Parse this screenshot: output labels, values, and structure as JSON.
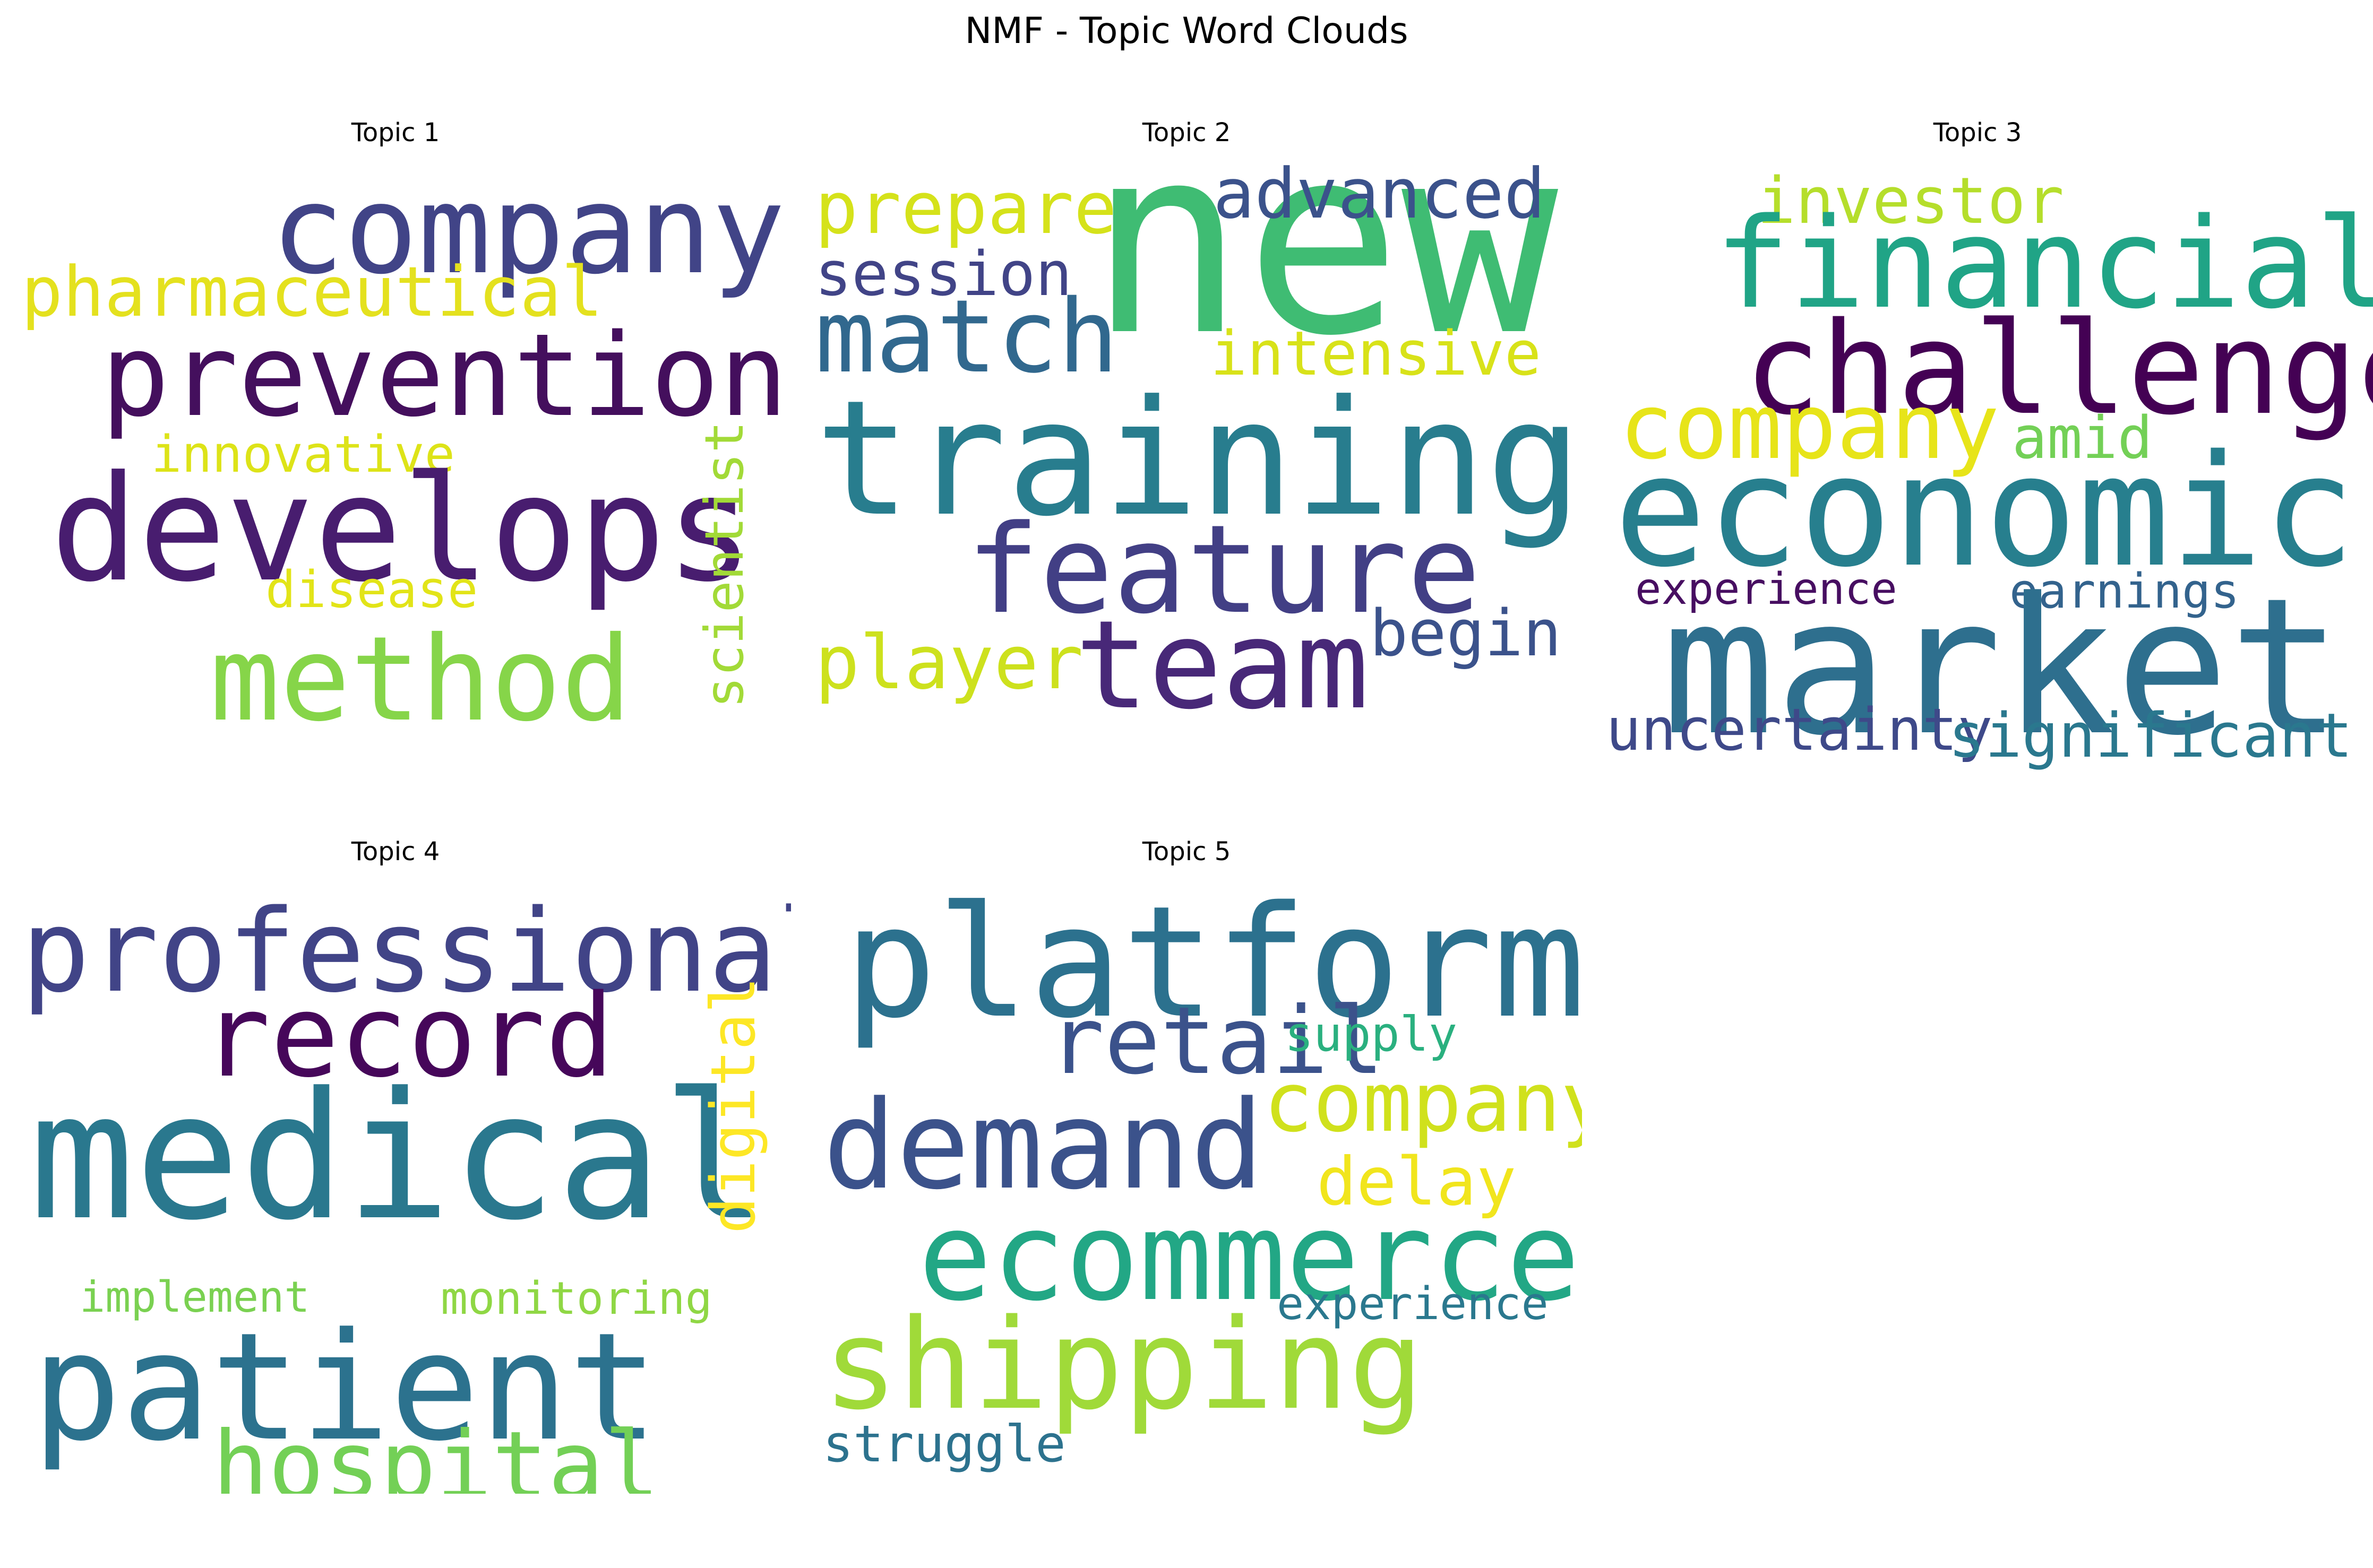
{
  "chart_data": {
    "type": "wordcloud",
    "title": "NMF - Topic Word Clouds",
    "panels": [
      {
        "title": "Topic 1",
        "words": [
          {
            "text": "company",
            "color": "#414487"
          },
          {
            "text": "pharmaceutical",
            "color": "#e4e11e"
          },
          {
            "text": "prevention",
            "color": "#440f5d"
          },
          {
            "text": "innovative",
            "color": "#dde318"
          },
          {
            "text": "develops",
            "color": "#481d6f"
          },
          {
            "text": "scientist",
            "color": "#a2da37"
          },
          {
            "text": "disease",
            "color": "#e2e418"
          },
          {
            "text": "method",
            "color": "#86d549"
          }
        ]
      },
      {
        "title": "Topic 2",
        "words": [
          {
            "text": "prepare",
            "color": "#d5e21a"
          },
          {
            "text": "new",
            "color": "#3fbc73"
          },
          {
            "text": "advanced",
            "color": "#3b528b"
          },
          {
            "text": "session",
            "color": "#414487"
          },
          {
            "text": "match",
            "color": "#31688e"
          },
          {
            "text": "intensive",
            "color": "#d8e219"
          },
          {
            "text": "training",
            "color": "#287d8e"
          },
          {
            "text": "feature",
            "color": "#423f85"
          },
          {
            "text": "player",
            "color": "#cde11d"
          },
          {
            "text": "team",
            "color": "#482878"
          },
          {
            "text": "begin",
            "color": "#3b528b"
          }
        ]
      },
      {
        "title": "Topic 3",
        "words": [
          {
            "text": "investor",
            "color": "#b5de2b"
          },
          {
            "text": "financial",
            "color": "#20a486"
          },
          {
            "text": "challenge",
            "color": "#440154"
          },
          {
            "text": "company",
            "color": "#e7e419"
          },
          {
            "text": "amid",
            "color": "#73d056"
          },
          {
            "text": "economic",
            "color": "#277f8e"
          },
          {
            "text": "experience",
            "color": "#470e61"
          },
          {
            "text": "earnings",
            "color": "#33638d"
          },
          {
            "text": "market",
            "color": "#2e6f8e"
          },
          {
            "text": "uncertainty",
            "color": "#3e4989"
          },
          {
            "text": "significant",
            "color": "#2a788e"
          }
        ]
      },
      {
        "title": "Topic 4",
        "words": [
          {
            "text": "professional",
            "color": "#414487"
          },
          {
            "text": "record",
            "color": "#46075a"
          },
          {
            "text": "medical",
            "color": "#2a788e"
          },
          {
            "text": "digital",
            "color": "#fde725"
          },
          {
            "text": "implement",
            "color": "#7ad151"
          },
          {
            "text": "monitoring",
            "color": "#8fd744"
          },
          {
            "text": "patient",
            "color": "#2c728e"
          },
          {
            "text": "hospital",
            "color": "#73d056"
          }
        ]
      },
      {
        "title": "Topic 5",
        "words": [
          {
            "text": "platform",
            "color": "#2c718e"
          },
          {
            "text": "retail",
            "color": "#3b528b"
          },
          {
            "text": "supply",
            "color": "#2ab07f"
          },
          {
            "text": "company",
            "color": "#d0e11c"
          },
          {
            "text": "demand",
            "color": "#3b528b"
          },
          {
            "text": "delay",
            "color": "#f1e51d"
          },
          {
            "text": "ecommerce",
            "color": "#22a785"
          },
          {
            "text": "experience",
            "color": "#2a788e"
          },
          {
            "text": "shipping",
            "color": "#a0da39"
          },
          {
            "text": "struggle",
            "color": "#2c728e"
          }
        ]
      }
    ]
  }
}
